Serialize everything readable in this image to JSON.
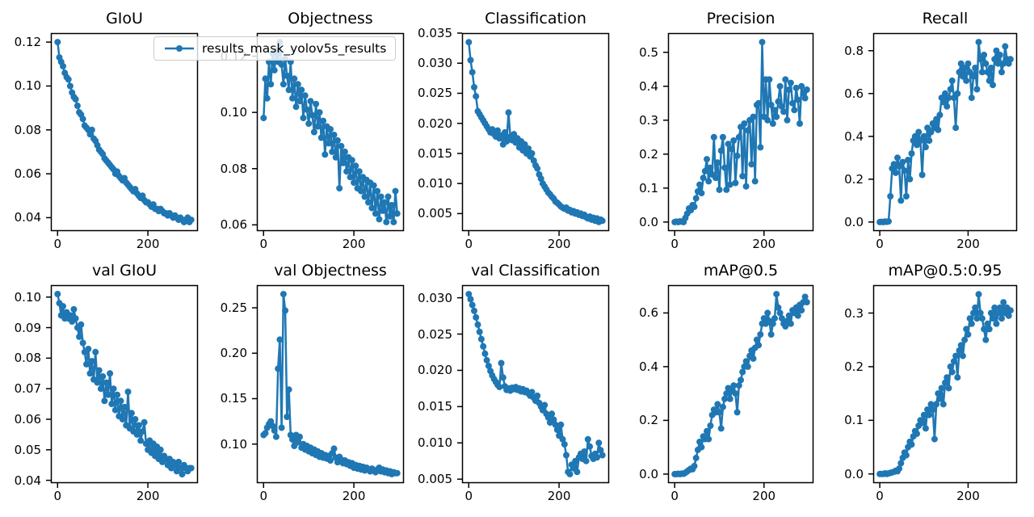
{
  "figure": {
    "background": "#ffffff",
    "axes_edge_color": "#000000"
  },
  "legend": {
    "label": "results_mask_yolov5s_results"
  },
  "chart_data": {
    "type": "line",
    "marker": "point",
    "line_color": "#1f77b4",
    "legend_position": "upper-left-overlapping-first-two-subplots",
    "grid": false,
    "xticks": [
      0,
      200
    ],
    "xtick_labels": [
      "0",
      "200"
    ],
    "xlim": [
      -14.8,
      310.8
    ],
    "x": [
      0,
      4,
      8,
      12,
      16,
      20,
      24,
      28,
      32,
      36,
      40,
      44,
      48,
      52,
      56,
      60,
      64,
      68,
      72,
      76,
      80,
      84,
      88,
      92,
      96,
      100,
      104,
      108,
      112,
      116,
      120,
      124,
      128,
      132,
      136,
      140,
      144,
      148,
      152,
      156,
      160,
      164,
      168,
      172,
      176,
      180,
      184,
      188,
      192,
      196,
      200,
      204,
      208,
      212,
      216,
      220,
      224,
      228,
      232,
      236,
      240,
      244,
      248,
      252,
      256,
      260,
      264,
      268,
      272,
      276,
      280,
      284,
      288,
      292,
      296
    ],
    "subplots": [
      {
        "title": "GIoU",
        "yticks": [
          0.04,
          0.06,
          0.08,
          0.1,
          0.12
        ],
        "ytick_labels": [
          "0.04",
          "0.06",
          "0.08",
          "0.10",
          "0.12"
        ],
        "ylim": [
          0.0339,
          0.1241
        ],
        "y": [
          0.12,
          0.113,
          0.111,
          0.109,
          0.106,
          0.104,
          0.103,
          0.1,
          0.097,
          0.095,
          0.094,
          0.091,
          0.088,
          0.087,
          0.085,
          0.082,
          0.081,
          0.08,
          0.078,
          0.08,
          0.076,
          0.075,
          0.073,
          0.071,
          0.07,
          0.069,
          0.067,
          0.066,
          0.065,
          0.064,
          0.063,
          0.062,
          0.06,
          0.061,
          0.059,
          0.058,
          0.057,
          0.058,
          0.056,
          0.055,
          0.054,
          0.053,
          0.052,
          0.053,
          0.051,
          0.05,
          0.049,
          0.05,
          0.048,
          0.047,
          0.047,
          0.046,
          0.045,
          0.046,
          0.044,
          0.044,
          0.043,
          0.044,
          0.043,
          0.042,
          0.042,
          0.041,
          0.042,
          0.041,
          0.04,
          0.041,
          0.04,
          0.039,
          0.04,
          0.039,
          0.038,
          0.039,
          0.04,
          0.038,
          0.039
        ]
      },
      {
        "title": "Objectness",
        "yticks": [
          0.06,
          0.08,
          0.1,
          0.12
        ],
        "ytick_labels": [
          "0.06",
          "0.08",
          "0.10",
          "0.12"
        ],
        "ylim": [
          0.0578,
          0.1282
        ],
        "y": [
          0.098,
          0.112,
          0.105,
          0.118,
          0.11,
          0.121,
          0.115,
          0.122,
          0.118,
          0.125,
          0.117,
          0.11,
          0.119,
          0.113,
          0.108,
          0.118,
          0.105,
          0.112,
          0.102,
          0.11,
          0.104,
          0.108,
          0.098,
          0.106,
          0.101,
          0.096,
          0.104,
          0.099,
          0.093,
          0.103,
          0.095,
          0.1,
          0.091,
          0.097,
          0.085,
          0.095,
          0.089,
          0.094,
          0.086,
          0.092,
          0.084,
          0.09,
          0.073,
          0.088,
          0.082,
          0.086,
          0.079,
          0.084,
          0.077,
          0.083,
          0.075,
          0.081,
          0.073,
          0.079,
          0.072,
          0.077,
          0.07,
          0.076,
          0.068,
          0.075,
          0.066,
          0.074,
          0.064,
          0.072,
          0.062,
          0.07,
          0.065,
          0.068,
          0.061,
          0.07,
          0.063,
          0.067,
          0.061,
          0.072,
          0.064
        ]
      },
      {
        "title": "Classification",
        "yticks": [
          0.005,
          0.01,
          0.015,
          0.02,
          0.025,
          0.03,
          0.035
        ],
        "ytick_labels": [
          "0.005",
          "0.010",
          "0.015",
          "0.020",
          "0.025",
          "0.030",
          "0.035"
        ],
        "ylim": [
          0.0021,
          0.035
        ],
        "y": [
          0.0335,
          0.0305,
          0.0285,
          0.026,
          0.0245,
          0.022,
          0.0215,
          0.021,
          0.0205,
          0.02,
          0.0195,
          0.019,
          0.0185,
          0.019,
          0.0182,
          0.0178,
          0.0188,
          0.0175,
          0.018,
          0.0165,
          0.0185,
          0.017,
          0.0218,
          0.0178,
          0.0172,
          0.0182,
          0.0168,
          0.0175,
          0.016,
          0.017,
          0.0155,
          0.0165,
          0.015,
          0.0158,
          0.0145,
          0.015,
          0.0138,
          0.013,
          0.0125,
          0.0115,
          0.0108,
          0.01,
          0.0095,
          0.009,
          0.0085,
          0.0082,
          0.0078,
          0.0075,
          0.007,
          0.0068,
          0.0065,
          0.0062,
          0.006,
          0.0058,
          0.006,
          0.0055,
          0.0056,
          0.0052,
          0.0054,
          0.005,
          0.0052,
          0.0048,
          0.005,
          0.0046,
          0.0048,
          0.0044,
          0.0042,
          0.0045,
          0.004,
          0.0043,
          0.0038,
          0.0042,
          0.0036,
          0.004,
          0.0038
        ]
      },
      {
        "title": "Precision",
        "yticks": [
          0.0,
          0.1,
          0.2,
          0.3,
          0.4,
          0.5
        ],
        "ytick_labels": [
          "0.0",
          "0.1",
          "0.2",
          "0.3",
          "0.4",
          "0.5"
        ],
        "ylim": [
          -0.0265,
          0.5565
        ],
        "y": [
          0.0,
          0.001,
          0.0,
          0.002,
          0.001,
          0.0,
          0.012,
          0.025,
          0.04,
          0.035,
          0.05,
          0.045,
          0.07,
          0.09,
          0.11,
          0.085,
          0.13,
          0.15,
          0.185,
          0.12,
          0.16,
          0.14,
          0.25,
          0.13,
          0.175,
          0.095,
          0.21,
          0.25,
          0.16,
          0.095,
          0.23,
          0.11,
          0.215,
          0.24,
          0.115,
          0.195,
          0.25,
          0.28,
          0.135,
          0.29,
          0.105,
          0.27,
          0.3,
          0.17,
          0.31,
          0.12,
          0.345,
          0.35,
          0.22,
          0.53,
          0.31,
          0.42,
          0.3,
          0.42,
          0.345,
          0.29,
          0.33,
          0.31,
          0.355,
          0.4,
          0.34,
          0.325,
          0.42,
          0.3,
          0.39,
          0.41,
          0.35,
          0.33,
          0.395,
          0.36,
          0.29,
          0.4,
          0.38,
          0.365,
          0.39
        ]
      },
      {
        "title": "Recall",
        "yticks": [
          0.0,
          0.2,
          0.4,
          0.6,
          0.8
        ],
        "ytick_labels": [
          "0.0",
          "0.2",
          "0.4",
          "0.6",
          "0.8"
        ],
        "ylim": [
          -0.042,
          0.882
        ],
        "y": [
          0.0,
          0.001,
          0.0,
          0.002,
          0.001,
          0.003,
          0.12,
          0.25,
          0.27,
          0.23,
          0.3,
          0.26,
          0.1,
          0.28,
          0.24,
          0.12,
          0.29,
          0.2,
          0.32,
          0.38,
          0.4,
          0.36,
          0.42,
          0.38,
          0.22,
          0.4,
          0.35,
          0.44,
          0.38,
          0.42,
          0.46,
          0.44,
          0.48,
          0.43,
          0.5,
          0.58,
          0.56,
          0.6,
          0.54,
          0.58,
          0.62,
          0.66,
          0.58,
          0.44,
          0.6,
          0.7,
          0.74,
          0.68,
          0.72,
          0.66,
          0.74,
          0.7,
          0.58,
          0.68,
          0.72,
          0.62,
          0.84,
          0.76,
          0.7,
          0.78,
          0.74,
          0.7,
          0.66,
          0.72,
          0.64,
          0.76,
          0.8,
          0.74,
          0.78,
          0.7,
          0.74,
          0.82,
          0.76,
          0.74,
          0.76
        ]
      },
      {
        "title": "val GIoU",
        "yticks": [
          0.04,
          0.05,
          0.06,
          0.07,
          0.08,
          0.09,
          0.1
        ],
        "ytick_labels": [
          "0.04",
          "0.05",
          "0.06",
          "0.07",
          "0.08",
          "0.09",
          "0.10"
        ],
        "ylim": [
          0.0391,
          0.1039
        ],
        "y": [
          0.101,
          0.098,
          0.094,
          0.097,
          0.093,
          0.095,
          0.093,
          0.094,
          0.092,
          0.096,
          0.093,
          0.09,
          0.087,
          0.091,
          0.085,
          0.082,
          0.078,
          0.083,
          0.075,
          0.079,
          0.073,
          0.082,
          0.072,
          0.076,
          0.07,
          0.074,
          0.066,
          0.072,
          0.068,
          0.075,
          0.065,
          0.07,
          0.063,
          0.068,
          0.061,
          0.066,
          0.06,
          0.064,
          0.058,
          0.069,
          0.057,
          0.062,
          0.056,
          0.06,
          0.055,
          0.058,
          0.053,
          0.056,
          0.059,
          0.052,
          0.05,
          0.053,
          0.049,
          0.052,
          0.048,
          0.051,
          0.047,
          0.05,
          0.046,
          0.048,
          0.047,
          0.045,
          0.047,
          0.044,
          0.046,
          0.045,
          0.043,
          0.046,
          0.044,
          0.042,
          0.045,
          0.044,
          0.043,
          0.044,
          0.044
        ]
      },
      {
        "title": "val Objectness",
        "yticks": [
          0.1,
          0.15,
          0.2,
          0.25
        ],
        "ytick_labels": [
          "0.10",
          "0.15",
          "0.20",
          "0.25"
        ],
        "ylim": [
          0.0571,
          0.2749
        ],
        "y": [
          0.11,
          0.112,
          0.118,
          0.122,
          0.125,
          0.12,
          0.115,
          0.108,
          0.183,
          0.215,
          0.118,
          0.265,
          0.247,
          0.13,
          0.16,
          0.11,
          0.105,
          0.098,
          0.11,
          0.102,
          0.108,
          0.096,
          0.1,
          0.094,
          0.098,
          0.092,
          0.096,
          0.09,
          0.094,
          0.088,
          0.092,
          0.086,
          0.09,
          0.085,
          0.088,
          0.084,
          0.087,
          0.082,
          0.09,
          0.095,
          0.085,
          0.08,
          0.086,
          0.083,
          0.079,
          0.082,
          0.078,
          0.08,
          0.076,
          0.079,
          0.074,
          0.077,
          0.073,
          0.076,
          0.072,
          0.075,
          0.071,
          0.074,
          0.072,
          0.07,
          0.073,
          0.071,
          0.069,
          0.072,
          0.074,
          0.07,
          0.072,
          0.069,
          0.071,
          0.068,
          0.07,
          0.067,
          0.069,
          0.068,
          0.068
        ]
      },
      {
        "title": "val Classification",
        "yticks": [
          0.005,
          0.01,
          0.015,
          0.02,
          0.025,
          0.03
        ],
        "ytick_labels": [
          "0.005",
          "0.010",
          "0.015",
          "0.020",
          "0.025",
          "0.030"
        ],
        "ylim": [
          0.00446,
          0.03174
        ],
        "y": [
          0.0305,
          0.0298,
          0.029,
          0.0282,
          0.0273,
          0.0263,
          0.0253,
          0.0243,
          0.0233,
          0.0223,
          0.0214,
          0.0206,
          0.0199,
          0.0193,
          0.0188,
          0.0184,
          0.018,
          0.0177,
          0.021,
          0.019,
          0.0178,
          0.0173,
          0.0175,
          0.0172,
          0.0176,
          0.0174,
          0.0177,
          0.0173,
          0.0175,
          0.0171,
          0.0174,
          0.017,
          0.0172,
          0.0168,
          0.0165,
          0.017,
          0.0162,
          0.0158,
          0.0165,
          0.0155,
          0.015,
          0.0145,
          0.0152,
          0.014,
          0.0135,
          0.0128,
          0.014,
          0.0132,
          0.0125,
          0.0118,
          0.011,
          0.0125,
          0.0105,
          0.0098,
          0.0083,
          0.006,
          0.0057,
          0.007,
          0.0065,
          0.0075,
          0.006,
          0.008,
          0.0085,
          0.0078,
          0.0088,
          0.0075,
          0.0105,
          0.0095,
          0.0082,
          0.0078,
          0.0085,
          0.008,
          0.01,
          0.009,
          0.0083
        ]
      },
      {
        "title": "mAP@0.5",
        "yticks": [
          0.0,
          0.2,
          0.4,
          0.6
        ],
        "ytick_labels": [
          "0.0",
          "0.2",
          "0.4",
          "0.6"
        ],
        "ylim": [
          -0.0335,
          0.7035
        ],
        "y": [
          0.0,
          0.0,
          0.001,
          0.0,
          0.002,
          0.001,
          0.005,
          0.01,
          0.015,
          0.02,
          0.018,
          0.03,
          0.06,
          0.09,
          0.12,
          0.1,
          0.14,
          0.13,
          0.16,
          0.13,
          0.18,
          0.22,
          0.24,
          0.23,
          0.26,
          0.23,
          0.17,
          0.25,
          0.28,
          0.3,
          0.32,
          0.28,
          0.31,
          0.33,
          0.3,
          0.23,
          0.33,
          0.35,
          0.38,
          0.4,
          0.42,
          0.4,
          0.44,
          0.46,
          0.43,
          0.47,
          0.5,
          0.48,
          0.52,
          0.56,
          0.58,
          0.56,
          0.6,
          0.57,
          0.52,
          0.56,
          0.58,
          0.67,
          0.62,
          0.6,
          0.58,
          0.56,
          0.55,
          0.57,
          0.59,
          0.56,
          0.61,
          0.6,
          0.62,
          0.59,
          0.63,
          0.61,
          0.64,
          0.66,
          0.64
        ]
      },
      {
        "title": "mAP@0.5:0.95",
        "yticks": [
          0.0,
          0.1,
          0.2,
          0.3
        ],
        "ytick_labels": [
          "0.0",
          "0.1",
          "0.2",
          "0.3"
        ],
        "ylim": [
          -0.017,
          0.352
        ],
        "y": [
          0.0,
          0.0,
          0.0,
          0.001,
          0.0,
          0.001,
          0.002,
          0.003,
          0.004,
          0.006,
          0.005,
          0.01,
          0.02,
          0.03,
          0.04,
          0.035,
          0.05,
          0.06,
          0.055,
          0.07,
          0.08,
          0.075,
          0.09,
          0.1,
          0.095,
          0.11,
          0.085,
          0.12,
          0.11,
          0.13,
          0.12,
          0.065,
          0.13,
          0.15,
          0.14,
          0.16,
          0.13,
          0.17,
          0.18,
          0.16,
          0.2,
          0.19,
          0.21,
          0.22,
          0.18,
          0.23,
          0.24,
          0.22,
          0.25,
          0.27,
          0.26,
          0.29,
          0.28,
          0.3,
          0.31,
          0.29,
          0.335,
          0.3,
          0.29,
          0.27,
          0.25,
          0.28,
          0.27,
          0.3,
          0.29,
          0.31,
          0.28,
          0.3,
          0.31,
          0.29,
          0.32,
          0.3,
          0.31,
          0.295,
          0.305
        ]
      }
    ]
  }
}
